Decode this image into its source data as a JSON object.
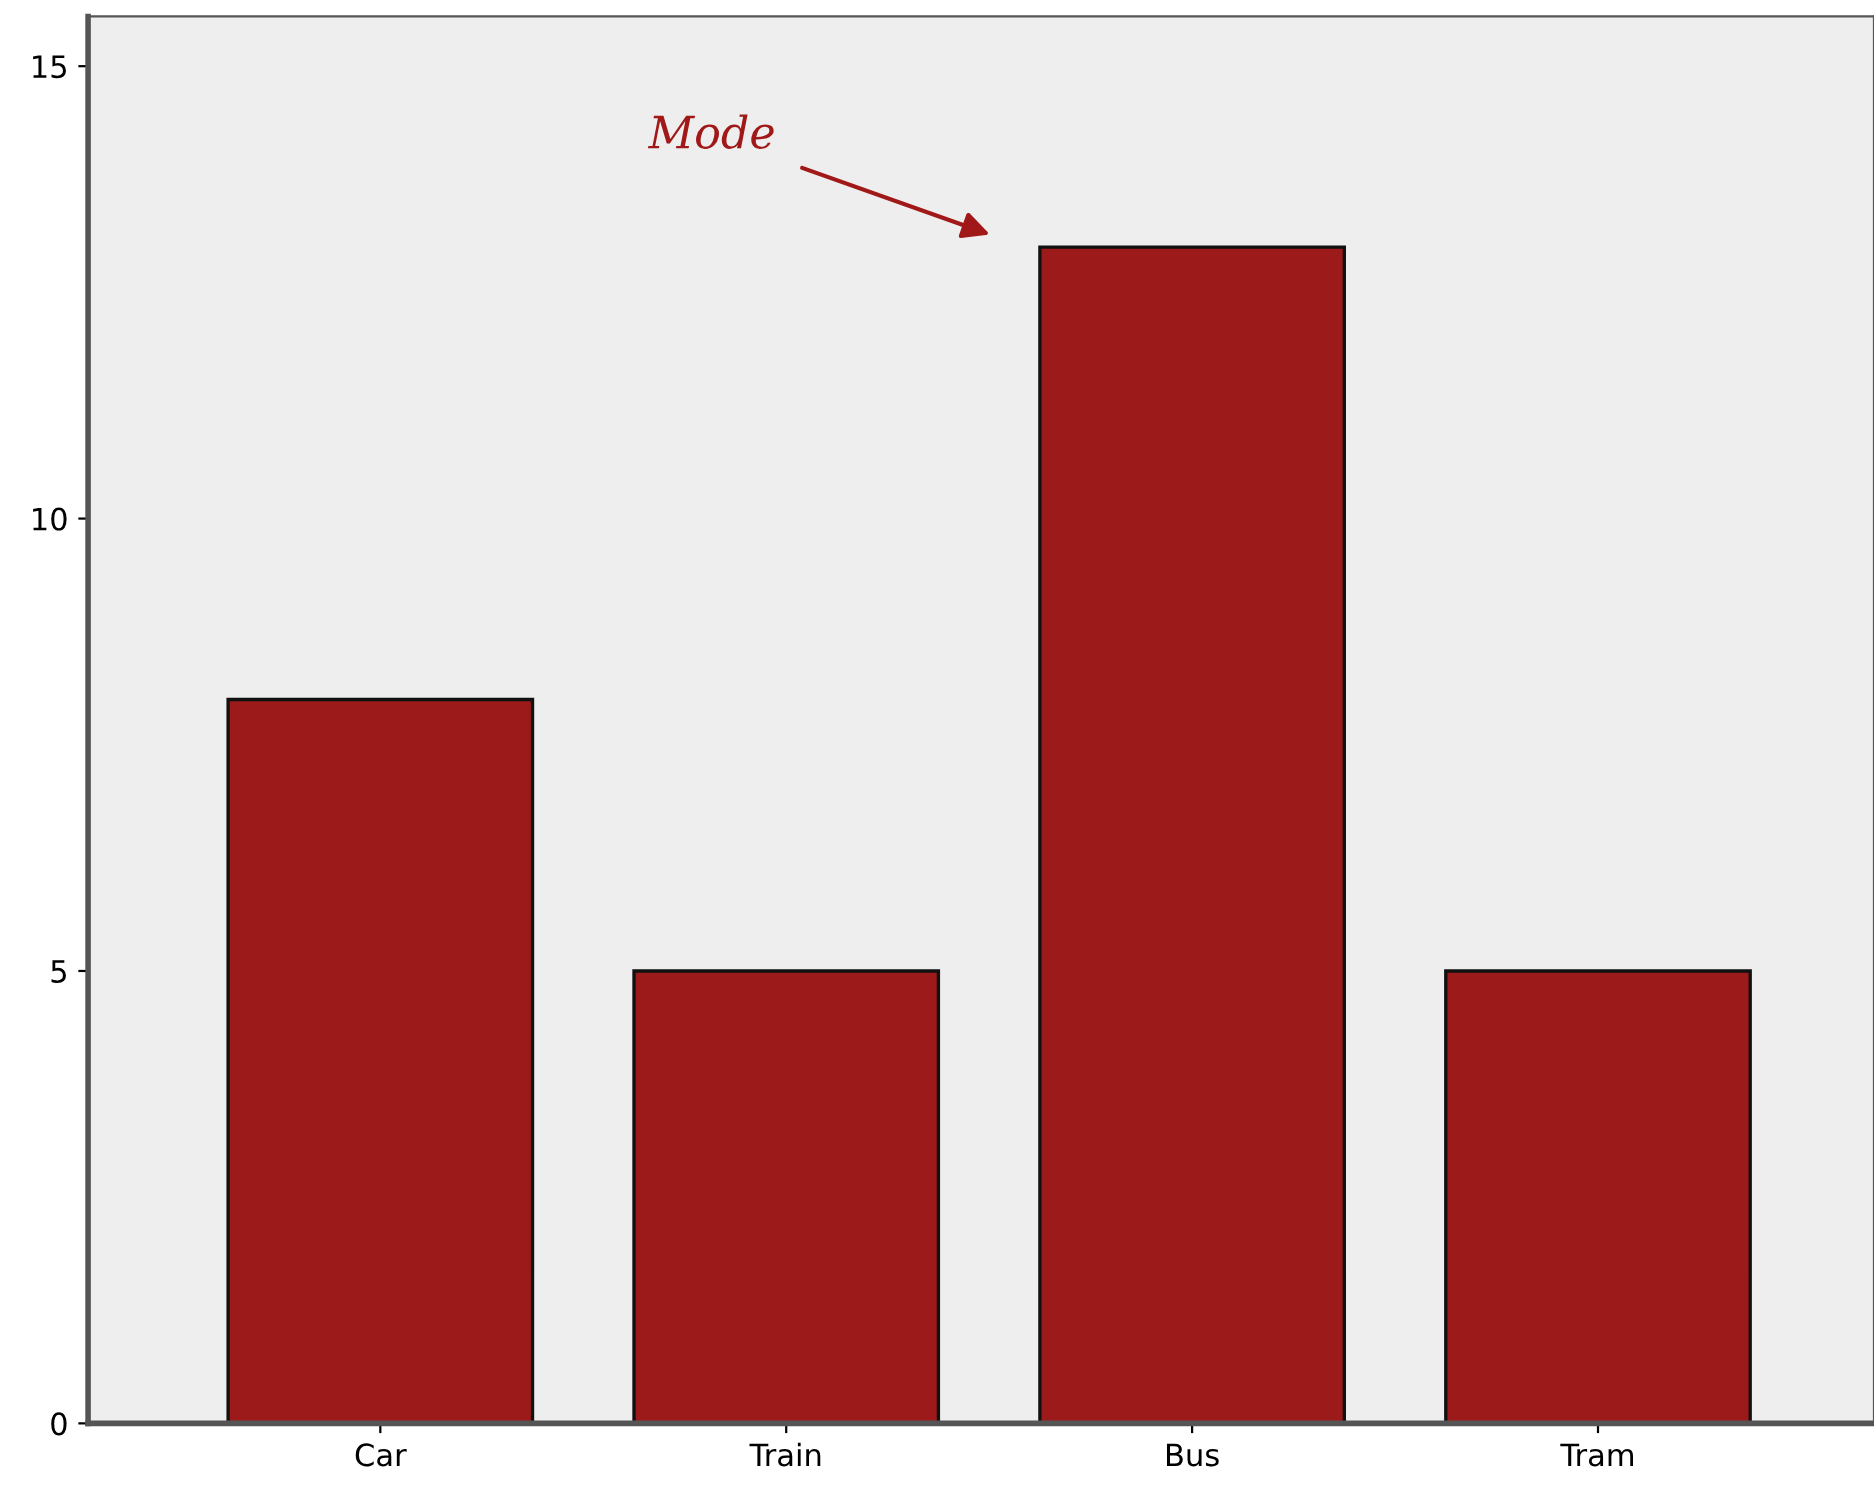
{
  "chart_data": {
    "type": "bar",
    "categories": [
      "Car",
      "Train",
      "Bus",
      "Tram"
    ],
    "values": [
      8,
      5,
      13,
      5
    ],
    "color": "#9c1a1a",
    "ylim": [
      0,
      15.55
    ],
    "yticks": [
      0,
      5,
      10,
      15
    ],
    "grid": false,
    "legend": false,
    "annotations": [
      "Mode"
    ]
  }
}
